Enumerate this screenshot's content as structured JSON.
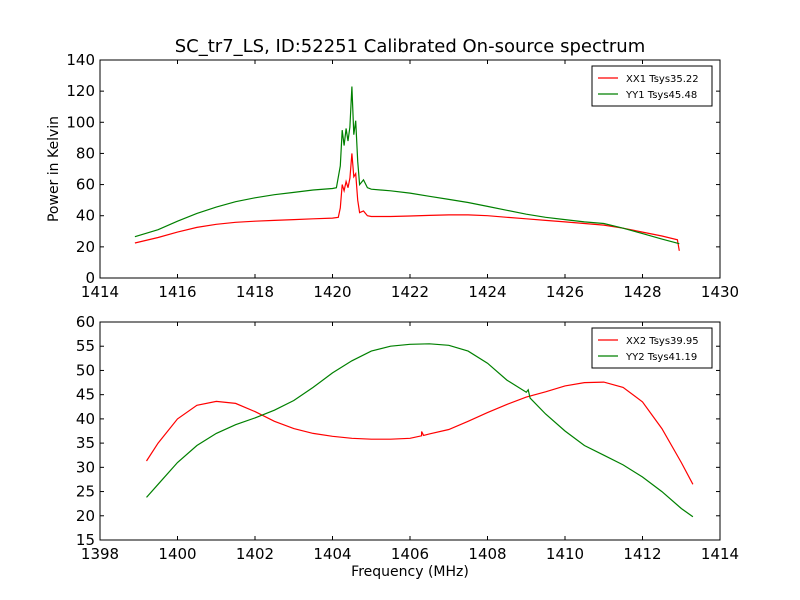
{
  "figure": {
    "title": "SC_tr7_LS, ID:52251 Calibrated On-source spectrum"
  },
  "chart_data": [
    {
      "type": "line",
      "title": "SC_tr7_LS, ID:52251 Calibrated On-source spectrum",
      "xlabel": "",
      "ylabel": "Power in Kelvin",
      "xlim": [
        1414,
        1430
      ],
      "ylim": [
        0,
        140
      ],
      "xticks": [
        1414,
        1416,
        1418,
        1420,
        1422,
        1424,
        1426,
        1428,
        1430
      ],
      "yticks": [
        0,
        20,
        40,
        60,
        80,
        100,
        120,
        140
      ],
      "grid": false,
      "legend": "top-right",
      "series": [
        {
          "name": "XX1 Tsys35.22",
          "color": "#ff0000",
          "points": [
            [
              1414.9,
              22.5
            ],
            [
              1415.5,
              26
            ],
            [
              1416,
              29.5
            ],
            [
              1416.5,
              32.5
            ],
            [
              1417,
              34.5
            ],
            [
              1417.5,
              35.8
            ],
            [
              1418,
              36.5
            ],
            [
              1418.5,
              37
            ],
            [
              1419,
              37.5
            ],
            [
              1419.5,
              38
            ],
            [
              1420,
              38.5
            ],
            [
              1420.15,
              39
            ],
            [
              1420.2,
              45
            ],
            [
              1420.25,
              60
            ],
            [
              1420.3,
              56
            ],
            [
              1420.35,
              62
            ],
            [
              1420.4,
              58
            ],
            [
              1420.45,
              64
            ],
            [
              1420.5,
              80
            ],
            [
              1420.55,
              65
            ],
            [
              1420.6,
              67
            ],
            [
              1420.65,
              50
            ],
            [
              1420.7,
              42
            ],
            [
              1420.8,
              43
            ],
            [
              1420.9,
              40
            ],
            [
              1421,
              39.5
            ],
            [
              1421.5,
              39.5
            ],
            [
              1422,
              39.8
            ],
            [
              1422.5,
              40.2
            ],
            [
              1423,
              40.5
            ],
            [
              1423.5,
              40.5
            ],
            [
              1424,
              40
            ],
            [
              1424.5,
              39
            ],
            [
              1425,
              38
            ],
            [
              1425.5,
              37
            ],
            [
              1426,
              36
            ],
            [
              1426.5,
              35
            ],
            [
              1427,
              34
            ],
            [
              1427.5,
              32
            ],
            [
              1428,
              29.5
            ],
            [
              1428.5,
              27
            ],
            [
              1428.9,
              24.5
            ],
            [
              1428.95,
              17.5
            ]
          ]
        },
        {
          "name": "YY1 Tsys45.48",
          "color": "#008000",
          "points": [
            [
              1414.9,
              26.5
            ],
            [
              1415.5,
              31
            ],
            [
              1416,
              36.5
            ],
            [
              1416.5,
              41.5
            ],
            [
              1417,
              45.5
            ],
            [
              1417.5,
              49
            ],
            [
              1418,
              51.5
            ],
            [
              1418.5,
              53.5
            ],
            [
              1419,
              55
            ],
            [
              1419.5,
              56.5
            ],
            [
              1420,
              57.5
            ],
            [
              1420.1,
              58
            ],
            [
              1420.2,
              72
            ],
            [
              1420.25,
              95
            ],
            [
              1420.3,
              85
            ],
            [
              1420.35,
              96
            ],
            [
              1420.4,
              88
            ],
            [
              1420.45,
              97
            ],
            [
              1420.5,
              123
            ],
            [
              1420.55,
              92
            ],
            [
              1420.6,
              101
            ],
            [
              1420.65,
              75
            ],
            [
              1420.7,
              60
            ],
            [
              1420.8,
              63
            ],
            [
              1420.9,
              58
            ],
            [
              1421,
              57
            ],
            [
              1421.5,
              56
            ],
            [
              1422,
              54.5
            ],
            [
              1422.5,
              52.5
            ],
            [
              1423,
              50.5
            ],
            [
              1423.5,
              48.5
            ],
            [
              1424,
              46
            ],
            [
              1424.5,
              43.5
            ],
            [
              1425,
              41
            ],
            [
              1425.5,
              39
            ],
            [
              1426,
              37.5
            ],
            [
              1426.5,
              36
            ],
            [
              1427,
              35
            ],
            [
              1427.5,
              32
            ],
            [
              1428,
              28.5
            ],
            [
              1428.5,
              25
            ],
            [
              1428.95,
              22
            ]
          ]
        }
      ]
    },
    {
      "type": "line",
      "title": "",
      "xlabel": "Frequency (MHz)",
      "ylabel": "",
      "xlim": [
        1398,
        1414
      ],
      "ylim": [
        15,
        60
      ],
      "xticks": [
        1398,
        1400,
        1402,
        1404,
        1406,
        1408,
        1410,
        1412,
        1414
      ],
      "yticks": [
        15,
        20,
        25,
        30,
        35,
        40,
        45,
        50,
        55,
        60
      ],
      "grid": false,
      "legend": "top-right",
      "series": [
        {
          "name": "XX2 Tsys39.95",
          "color": "#ff0000",
          "points": [
            [
              1399.2,
              31.3
            ],
            [
              1399.5,
              35
            ],
            [
              1400,
              40
            ],
            [
              1400.5,
              42.8
            ],
            [
              1401,
              43.6
            ],
            [
              1401.5,
              43.2
            ],
            [
              1402,
              41.5
            ],
            [
              1402.5,
              39.5
            ],
            [
              1403,
              38
            ],
            [
              1403.5,
              37
            ],
            [
              1404,
              36.4
            ],
            [
              1404.5,
              36
            ],
            [
              1405,
              35.8
            ],
            [
              1405.5,
              35.8
            ],
            [
              1406,
              36
            ],
            [
              1406.3,
              36.5
            ],
            [
              1406.3,
              37.4
            ],
            [
              1406.35,
              36.6
            ],
            [
              1406.5,
              36.9
            ],
            [
              1407,
              37.8
            ],
            [
              1407.5,
              39.5
            ],
            [
              1408,
              41.3
            ],
            [
              1408.5,
              43
            ],
            [
              1409,
              44.5
            ],
            [
              1409.5,
              45.6
            ],
            [
              1410,
              46.8
            ],
            [
              1410.5,
              47.5
            ],
            [
              1411,
              47.6
            ],
            [
              1411.5,
              46.5
            ],
            [
              1412,
              43.5
            ],
            [
              1412.5,
              38
            ],
            [
              1413,
              31
            ],
            [
              1413.3,
              26.5
            ]
          ]
        },
        {
          "name": "YY2 Tsys41.19",
          "color": "#008000",
          "points": [
            [
              1399.2,
              23.8
            ],
            [
              1399.5,
              26.5
            ],
            [
              1400,
              31
            ],
            [
              1400.5,
              34.5
            ],
            [
              1401,
              37
            ],
            [
              1401.5,
              38.8
            ],
            [
              1402,
              40.2
            ],
            [
              1402.5,
              41.8
            ],
            [
              1403,
              43.8
            ],
            [
              1403.5,
              46.5
            ],
            [
              1404,
              49.5
            ],
            [
              1404.5,
              52
            ],
            [
              1405,
              54
            ],
            [
              1405.5,
              55
            ],
            [
              1406,
              55.4
            ],
            [
              1406.5,
              55.5
            ],
            [
              1407,
              55.2
            ],
            [
              1407.5,
              54
            ],
            [
              1408,
              51.5
            ],
            [
              1408.5,
              48
            ],
            [
              1409,
              45.5
            ],
            [
              1409.05,
              46
            ],
            [
              1409.1,
              44.3
            ],
            [
              1409.5,
              41
            ],
            [
              1410,
              37.5
            ],
            [
              1410.5,
              34.5
            ],
            [
              1411,
              32.5
            ],
            [
              1411.5,
              30.5
            ],
            [
              1412,
              28
            ],
            [
              1412.5,
              25
            ],
            [
              1413,
              21.5
            ],
            [
              1413.3,
              19.8
            ]
          ]
        }
      ]
    }
  ]
}
